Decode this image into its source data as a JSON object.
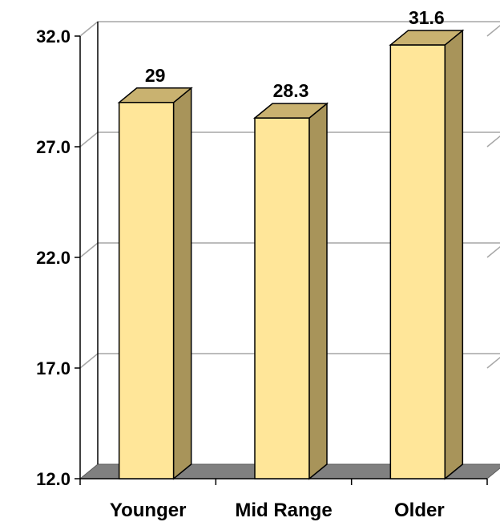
{
  "chart_data": {
    "type": "bar",
    "categories": [
      "Younger",
      "Mid Range",
      "Older"
    ],
    "values": [
      29,
      28.3,
      31.6
    ],
    "data_labels": [
      "29",
      "28.3",
      "31.6"
    ],
    "ylim": [
      12.0,
      32.0
    ],
    "yticks": [
      12.0,
      17.0,
      22.0,
      27.0,
      32.0
    ],
    "ytick_labels": [
      "12.0",
      "17.0",
      "22.0",
      "27.0",
      "32.0"
    ],
    "title": "",
    "xlabel": "",
    "ylabel": "",
    "grid": true,
    "style": "3d-column",
    "colors": {
      "bar_front": "#FFE699",
      "bar_side": "#A8945A",
      "bar_top": "#C9B270",
      "floor": "#808080",
      "grid": "#A6A6A6",
      "axis": "#000000"
    }
  }
}
